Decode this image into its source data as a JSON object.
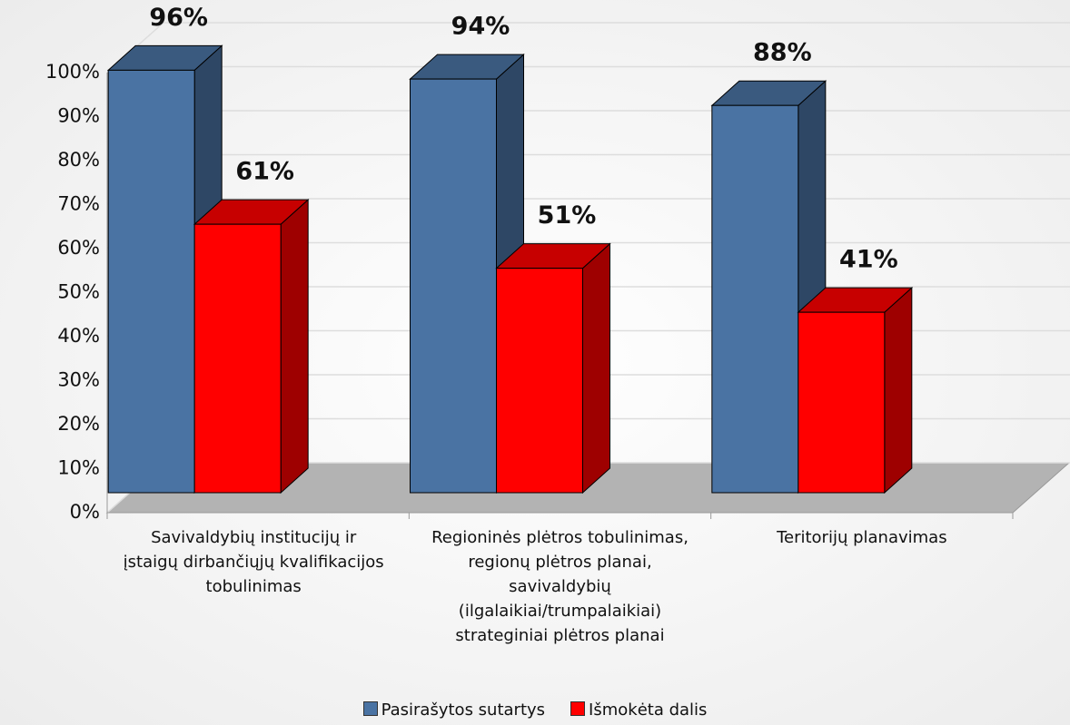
{
  "chart_data": {
    "type": "bar3d",
    "categories": [
      "Savivaldybių institucijų ir įstaigų dirbančiųjų kvalifikacijos tobulinimas",
      "Regioninės plėtros tobulinimas, regionų plėtros planai, savivaldybių (ilgalaikiai/trumpalaikiai) strateginiai plėtros planai",
      "Teritorijų planavimas"
    ],
    "series": [
      {
        "name": "Pasirašytos sutartys",
        "color": "#4a73a3",
        "values": [
          96,
          94,
          88
        ],
        "value_labels": [
          "96%",
          "94%",
          "88%"
        ]
      },
      {
        "name": "Išmokėta dalis",
        "color": "#ff0000",
        "values": [
          61,
          51,
          41
        ],
        "value_labels": [
          "61%",
          "51%",
          "41%"
        ]
      }
    ],
    "ylim": [
      0,
      100
    ],
    "yticks": [
      {
        "value": 0,
        "label": "0%"
      },
      {
        "value": 10,
        "label": "10%"
      },
      {
        "value": 20,
        "label": "20%"
      },
      {
        "value": 30,
        "label": "30%"
      },
      {
        "value": 40,
        "label": "40%"
      },
      {
        "value": 50,
        "label": "50%"
      },
      {
        "value": 60,
        "label": "60%"
      },
      {
        "value": 70,
        "label": "70%"
      },
      {
        "value": 80,
        "label": "80%"
      },
      {
        "value": 90,
        "label": "90%"
      },
      {
        "value": 100,
        "label": "100%"
      }
    ],
    "grid": true,
    "legend": "bottom"
  }
}
